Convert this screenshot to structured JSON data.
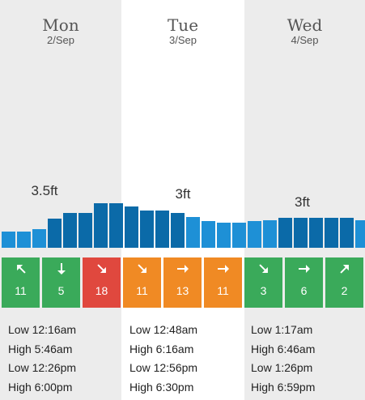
{
  "days": [
    {
      "name": "Mon",
      "date": "2/Sep",
      "height": "3.5ft",
      "tides": [
        "Low 12:16am",
        "High 5:46am",
        "Low 12:26pm",
        "High 6:00pm"
      ]
    },
    {
      "name": "Tue",
      "date": "3/Sep",
      "height": "3ft",
      "tides": [
        "Low 12:48am",
        "High 6:16am",
        "Low 12:56pm",
        "High 6:30pm"
      ]
    },
    {
      "name": "Wed",
      "date": "4/Sep",
      "height": "3ft",
      "tides": [
        "Low 1:17am",
        "High 6:46am",
        "Low 1:26pm",
        "High 6:59pm"
      ]
    }
  ],
  "chart_data": {
    "type": "bar",
    "ylabel": "",
    "unit": "ft",
    "values": [
      1.0,
      1.0,
      1.15,
      1.8,
      2.15,
      2.15,
      2.75,
      2.75,
      2.55,
      2.3,
      2.3,
      2.15,
      1.9,
      1.65,
      1.55,
      1.55,
      1.65,
      1.7,
      1.85,
      1.85,
      1.85,
      1.85,
      1.85,
      1.7
    ],
    "bar_colors": [
      "#1e90d6",
      "#1e90d6",
      "#1e90d6",
      "#0b6aa8",
      "#0b6aa8",
      "#0b6aa8",
      "#0b6aa8",
      "#0b6aa8",
      "#0b6aa8",
      "#0b6aa8",
      "#0b6aa8",
      "#0b6aa8",
      "#1e90d6",
      "#1e90d6",
      "#1e90d6",
      "#1e90d6",
      "#1e90d6",
      "#1e90d6",
      "#0b6aa8",
      "#0b6aa8",
      "#0b6aa8",
      "#0b6aa8",
      "#0b6aa8",
      "#1e90d6"
    ]
  },
  "wind": [
    {
      "speed": "11",
      "direction": "north-west",
      "color": "#3aaa5a"
    },
    {
      "speed": "5",
      "direction": "south",
      "color": "#3aaa5a"
    },
    {
      "speed": "18",
      "direction": "south-east",
      "color": "#e0483e"
    },
    {
      "speed": "11",
      "direction": "south-east",
      "color": "#f08a24"
    },
    {
      "speed": "13",
      "direction": "east",
      "color": "#f08a24"
    },
    {
      "speed": "11",
      "direction": "east",
      "color": "#f08a24"
    },
    {
      "speed": "3",
      "direction": "south-east",
      "color": "#3aaa5a"
    },
    {
      "speed": "6",
      "direction": "east",
      "color": "#3aaa5a"
    },
    {
      "speed": "2",
      "direction": "north-east",
      "color": "#3aaa5a"
    }
  ]
}
